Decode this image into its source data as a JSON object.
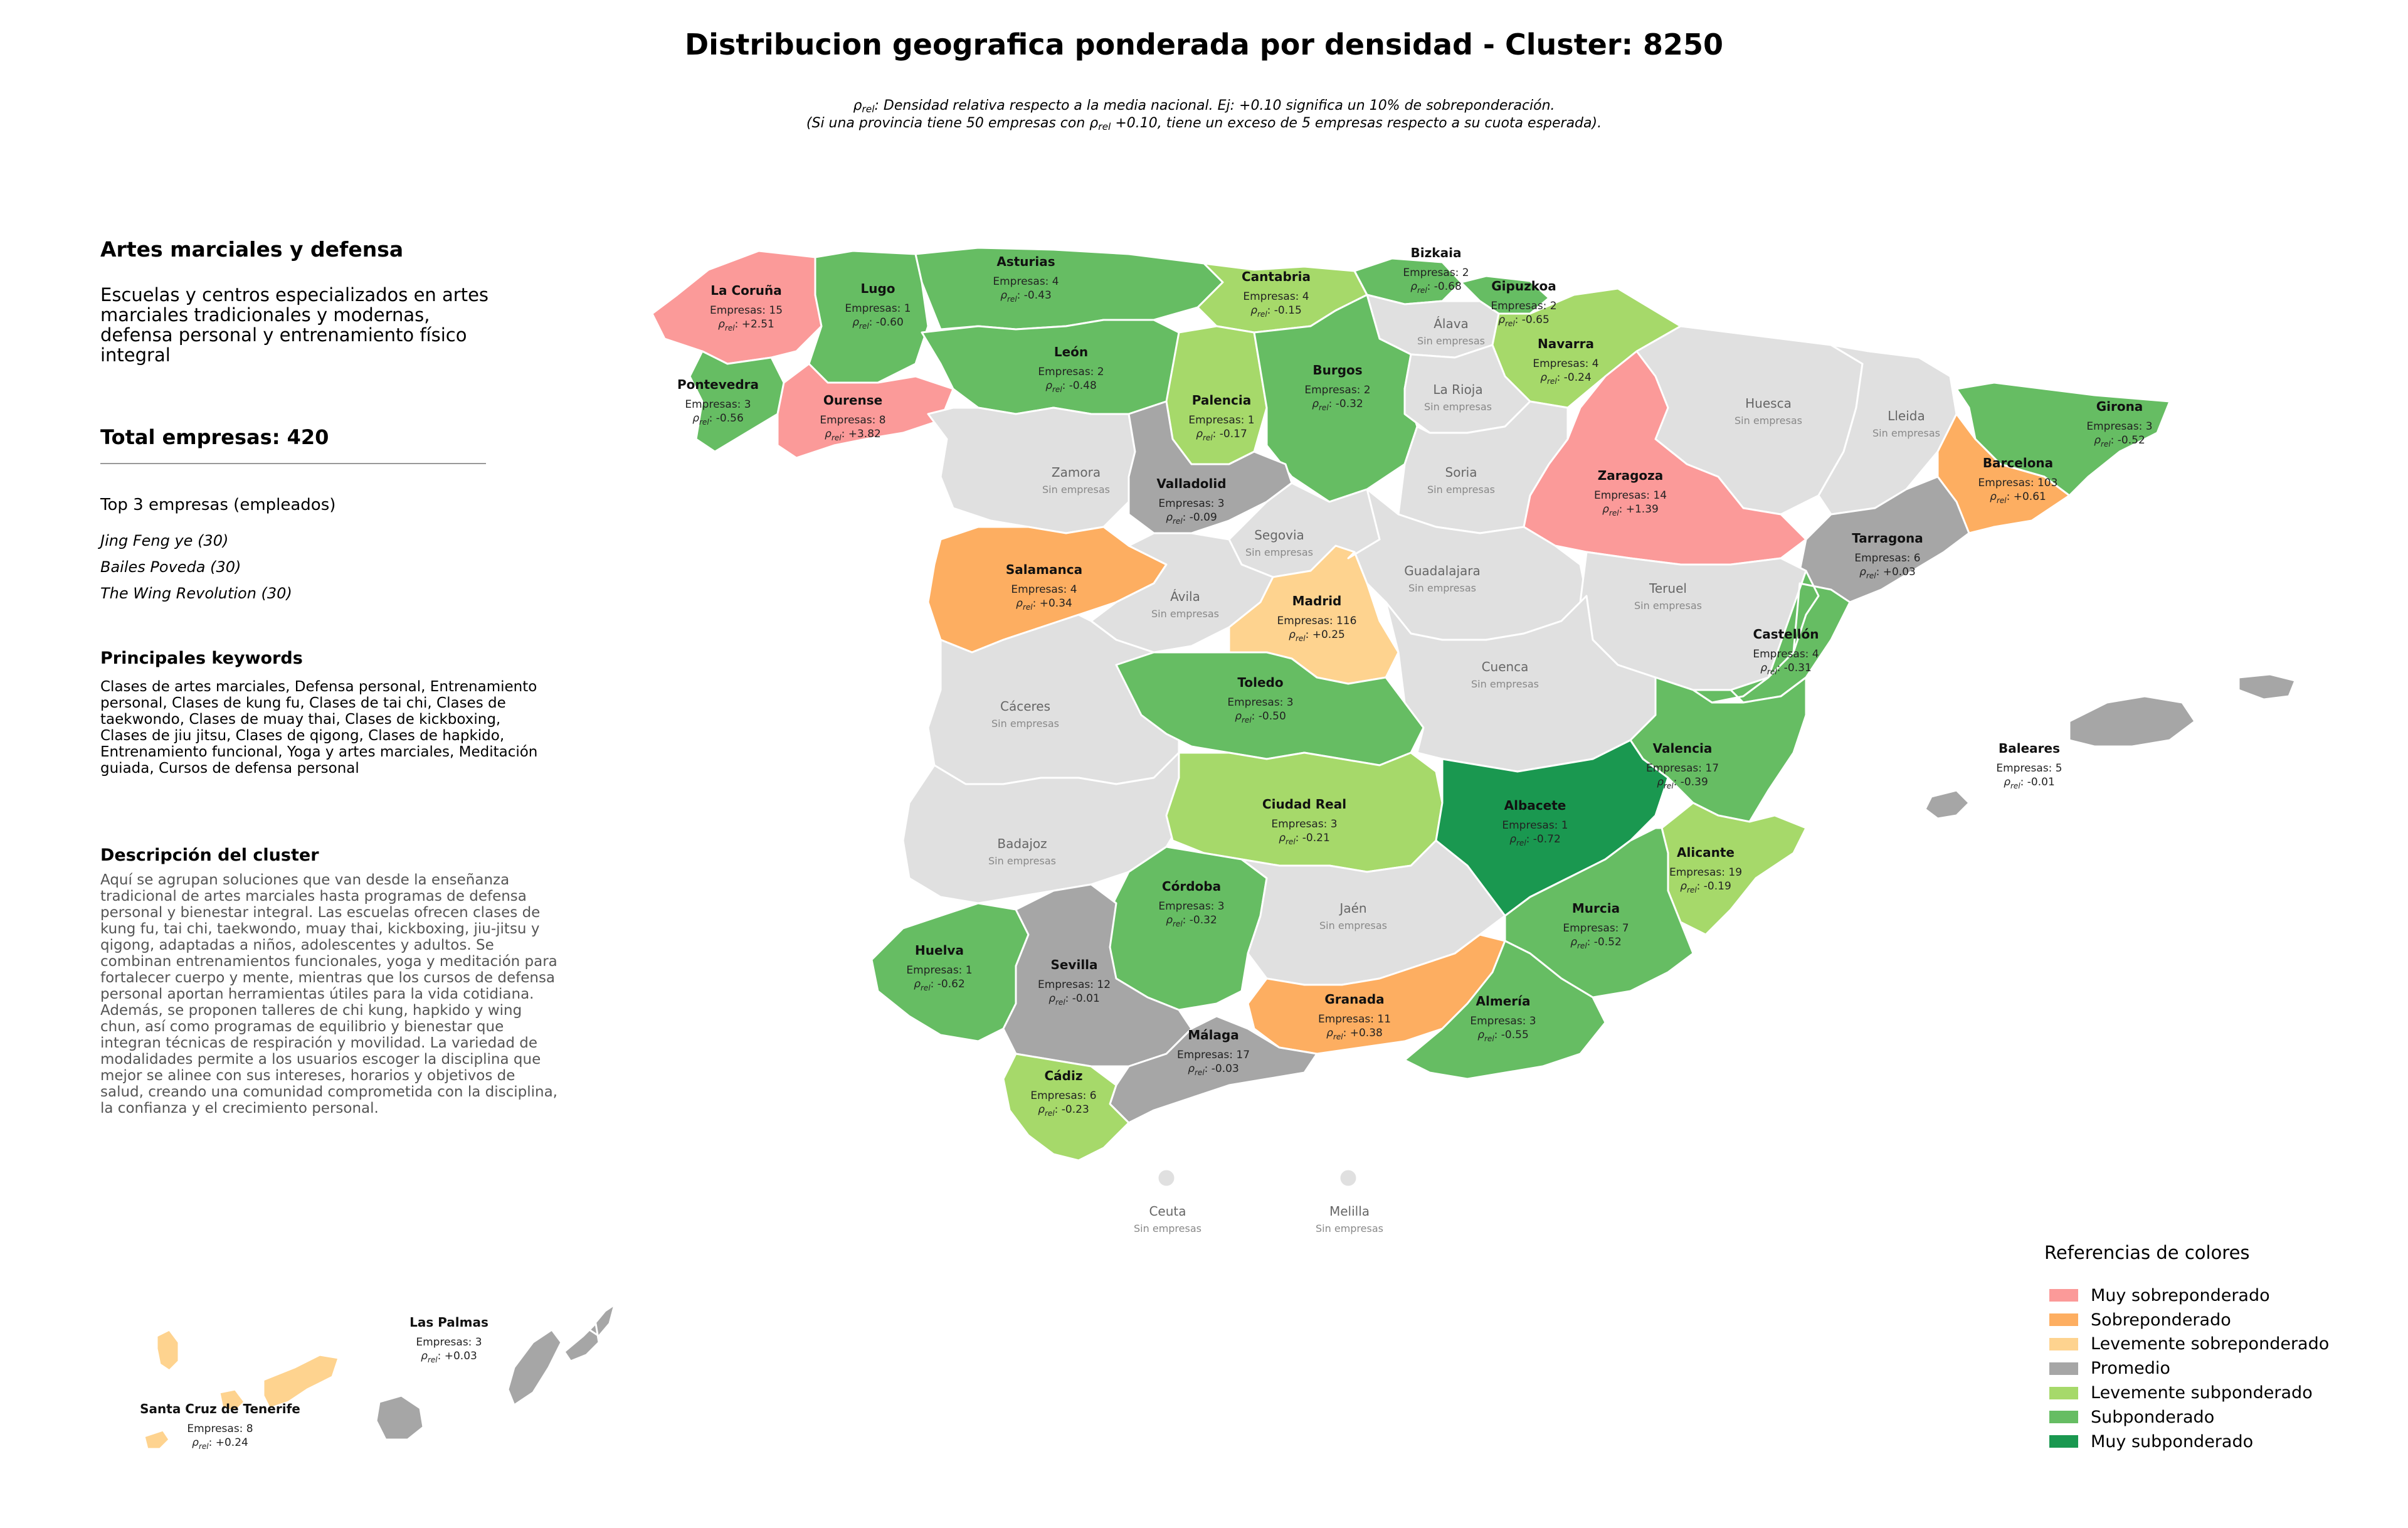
{
  "title": "Distribucion geografica ponderada por densidad - Cluster: 8250",
  "subtitle_line1": ": Densidad relativa respecto a la media nacional. Ej: +0.10 significa un 10% de sobreponderación.",
  "subtitle_line2a": "(Si una provincia tiene 50 empresas con ",
  "subtitle_line2b": " +0.10, tiene un exceso de 5 empresas respecto a su cuota esperada).",
  "rho_symbol": "ρ",
  "rho_sub": "rel",
  "category": {
    "title": "Artes marciales y defensa",
    "description": "Escuelas y centros especializados en artes marciales tradicionales y modernas, defensa personal y entrenamiento físico integral"
  },
  "total_label": "Total empresas: 420",
  "top_title": "Top 3 empresas (empleados)",
  "top_companies": [
    "Jing Feng ye (30)",
    "Bailes Poveda (30)",
    "The Wing Revolution (30)"
  ],
  "keywords_title": "Principales keywords",
  "keywords_text": "Clases de artes marciales, Defensa personal, Entrenamiento personal, Clases de kung fu, Clases de tai chi, Clases de taekwondo, Clases de muay thai, Clases de kickboxing, Clases de jiu jitsu, Clases de qigong, Clases de hapkido, Entrenamiento funcional, Yoga y artes marciales, Meditación guiada, Cursos de defensa personal",
  "cluster_desc_title": "Descripción del cluster",
  "cluster_desc_text": "Aquí se agrupan soluciones que van desde la enseñanza tradicional de artes marciales hasta programas de defensa personal y bienestar integral. Las escuelas ofrecen clases de kung fu, tai chi, taekwondo, muay thai, kickboxing, jiu-jitsu y qigong, adaptadas a niños, adolescentes y adultos. Se combinan entrenamientos funcionales, yoga y meditación para fortalecer cuerpo y mente, mientras que los cursos de defensa personal aportan herramientas útiles para la vida cotidiana. Además, se proponen talleres de chi kung, hapkido y wing chun, así como programas de equilibrio y bienestar que integran técnicas de respiración y movilidad. La variedad de modalidades permite a los usuarios escoger la disciplina que mejor se alinee con sus intereses, horarios y objetivos de salud, creando una comunidad comprometida con la disciplina, la confianza y el crecimiento personal.",
  "empresas_prefix": "Empresas: ",
  "no_data_label": "Sin empresas",
  "colors": {
    "muy_sobre": "#fb9a99",
    "sobre": "#fdae61",
    "lev_sobre": "#fed38f",
    "promedio": "#a6a6a6",
    "lev_sub": "#a6d96a",
    "sub": "#66bd63",
    "muy_sub": "#1a9850",
    "sin": "#e0e0e0",
    "border": "#ffffff"
  },
  "legend": {
    "title": "Referencias de colores",
    "items": [
      {
        "label": "Muy sobreponderado",
        "color": "#fb9a99"
      },
      {
        "label": "Sobreponderado",
        "color": "#fdae61"
      },
      {
        "label": "Levemente sobreponderado",
        "color": "#fed38f"
      },
      {
        "label": "Promedio",
        "color": "#a6a6a6"
      },
      {
        "label": "Levemente subponderado",
        "color": "#a6d96a"
      },
      {
        "label": "Subponderado",
        "color": "#66bd63"
      },
      {
        "label": "Muy subponderado",
        "color": "#1a9850"
      }
    ]
  },
  "provinces": [
    {
      "name": "La Coruña",
      "empresas": 15,
      "rho": "+2.51",
      "class": "muy_sobre"
    },
    {
      "name": "Lugo",
      "empresas": 1,
      "rho": "-0.60",
      "class": "sub"
    },
    {
      "name": "Asturias",
      "empresas": 4,
      "rho": "-0.43",
      "class": "sub"
    },
    {
      "name": "Cantabria",
      "empresas": 4,
      "rho": "-0.15",
      "class": "lev_sub"
    },
    {
      "name": "Bizkaia",
      "empresas": 2,
      "rho": "-0.68",
      "class": "sub"
    },
    {
      "name": "Gipuzkoa",
      "empresas": 2,
      "rho": "-0.65",
      "class": "sub"
    },
    {
      "name": "Álava",
      "empresas": null,
      "rho": null,
      "class": "sin"
    },
    {
      "name": "Navarra",
      "empresas": 4,
      "rho": "-0.24",
      "class": "lev_sub"
    },
    {
      "name": "Pontevedra",
      "empresas": 3,
      "rho": "-0.56",
      "class": "sub"
    },
    {
      "name": "Ourense",
      "empresas": 8,
      "rho": "+3.82",
      "class": "muy_sobre"
    },
    {
      "name": "León",
      "empresas": 2,
      "rho": "-0.48",
      "class": "sub"
    },
    {
      "name": "Palencia",
      "empresas": 1,
      "rho": "-0.17",
      "class": "lev_sub"
    },
    {
      "name": "Burgos",
      "empresas": 2,
      "rho": "-0.32",
      "class": "sub"
    },
    {
      "name": "La Rioja",
      "empresas": null,
      "rho": null,
      "class": "sin"
    },
    {
      "name": "Huesca",
      "empresas": null,
      "rho": null,
      "class": "sin"
    },
    {
      "name": "Lleida",
      "empresas": null,
      "rho": null,
      "class": "sin"
    },
    {
      "name": "Girona",
      "empresas": 3,
      "rho": "-0.52",
      "class": "sub"
    },
    {
      "name": "Barcelona",
      "empresas": 103,
      "rho": "+0.61",
      "class": "sobre"
    },
    {
      "name": "Zaragoza",
      "empresas": 14,
      "rho": "+1.39",
      "class": "muy_sobre"
    },
    {
      "name": "Soria",
      "empresas": null,
      "rho": null,
      "class": "sin"
    },
    {
      "name": "Zamora",
      "empresas": null,
      "rho": null,
      "class": "sin"
    },
    {
      "name": "Valladolid",
      "empresas": 3,
      "rho": "-0.09",
      "class": "promedio"
    },
    {
      "name": "Segovia",
      "empresas": null,
      "rho": null,
      "class": "sin"
    },
    {
      "name": "Tarragona",
      "empresas": 6,
      "rho": "+0.03",
      "class": "promedio"
    },
    {
      "name": "Salamanca",
      "empresas": 4,
      "rho": "+0.34",
      "class": "sobre"
    },
    {
      "name": "Ávila",
      "empresas": null,
      "rho": null,
      "class": "sin"
    },
    {
      "name": "Madrid",
      "empresas": 116,
      "rho": "+0.25",
      "class": "lev_sobre"
    },
    {
      "name": "Guadalajara",
      "empresas": null,
      "rho": null,
      "class": "sin"
    },
    {
      "name": "Teruel",
      "empresas": null,
      "rho": null,
      "class": "sin"
    },
    {
      "name": "Castellón",
      "empresas": 4,
      "rho": "-0.31",
      "class": "sub"
    },
    {
      "name": "Cáceres",
      "empresas": null,
      "rho": null,
      "class": "sin"
    },
    {
      "name": "Toledo",
      "empresas": 3,
      "rho": "-0.50",
      "class": "sub"
    },
    {
      "name": "Cuenca",
      "empresas": null,
      "rho": null,
      "class": "sin"
    },
    {
      "name": "Valencia",
      "empresas": 17,
      "rho": "-0.39",
      "class": "sub"
    },
    {
      "name": "Baleares",
      "empresas": 5,
      "rho": "-0.01",
      "class": "promedio"
    },
    {
      "name": "Badajoz",
      "empresas": null,
      "rho": null,
      "class": "sin"
    },
    {
      "name": "Ciudad Real",
      "empresas": 3,
      "rho": "-0.21",
      "class": "lev_sub"
    },
    {
      "name": "Albacete",
      "empresas": 1,
      "rho": "-0.72",
      "class": "muy_sub"
    },
    {
      "name": "Alicante",
      "empresas": 19,
      "rho": "-0.19",
      "class": "lev_sub"
    },
    {
      "name": "Córdoba",
      "empresas": 3,
      "rho": "-0.32",
      "class": "sub"
    },
    {
      "name": "Jaén",
      "empresas": null,
      "rho": null,
      "class": "sin"
    },
    {
      "name": "Murcia",
      "empresas": 7,
      "rho": "-0.52",
      "class": "sub"
    },
    {
      "name": "Huelva",
      "empresas": 1,
      "rho": "-0.62",
      "class": "sub"
    },
    {
      "name": "Sevilla",
      "empresas": 12,
      "rho": "-0.01",
      "class": "promedio"
    },
    {
      "name": "Granada",
      "empresas": 11,
      "rho": "+0.38",
      "class": "sobre"
    },
    {
      "name": "Almería",
      "empresas": 3,
      "rho": "-0.55",
      "class": "sub"
    },
    {
      "name": "Málaga",
      "empresas": 17,
      "rho": "-0.03",
      "class": "promedio"
    },
    {
      "name": "Cádiz",
      "empresas": 6,
      "rho": "-0.23",
      "class": "lev_sub"
    },
    {
      "name": "Ceuta",
      "empresas": null,
      "rho": null,
      "class": "sin"
    },
    {
      "name": "Melilla",
      "empresas": null,
      "rho": null,
      "class": "sin"
    },
    {
      "name": "Las Palmas",
      "empresas": 3,
      "rho": "+0.03",
      "class": "promedio"
    },
    {
      "name": "Santa Cruz de Tenerife",
      "empresas": 8,
      "rho": "+0.24",
      "class": "lev_sobre"
    }
  ]
}
